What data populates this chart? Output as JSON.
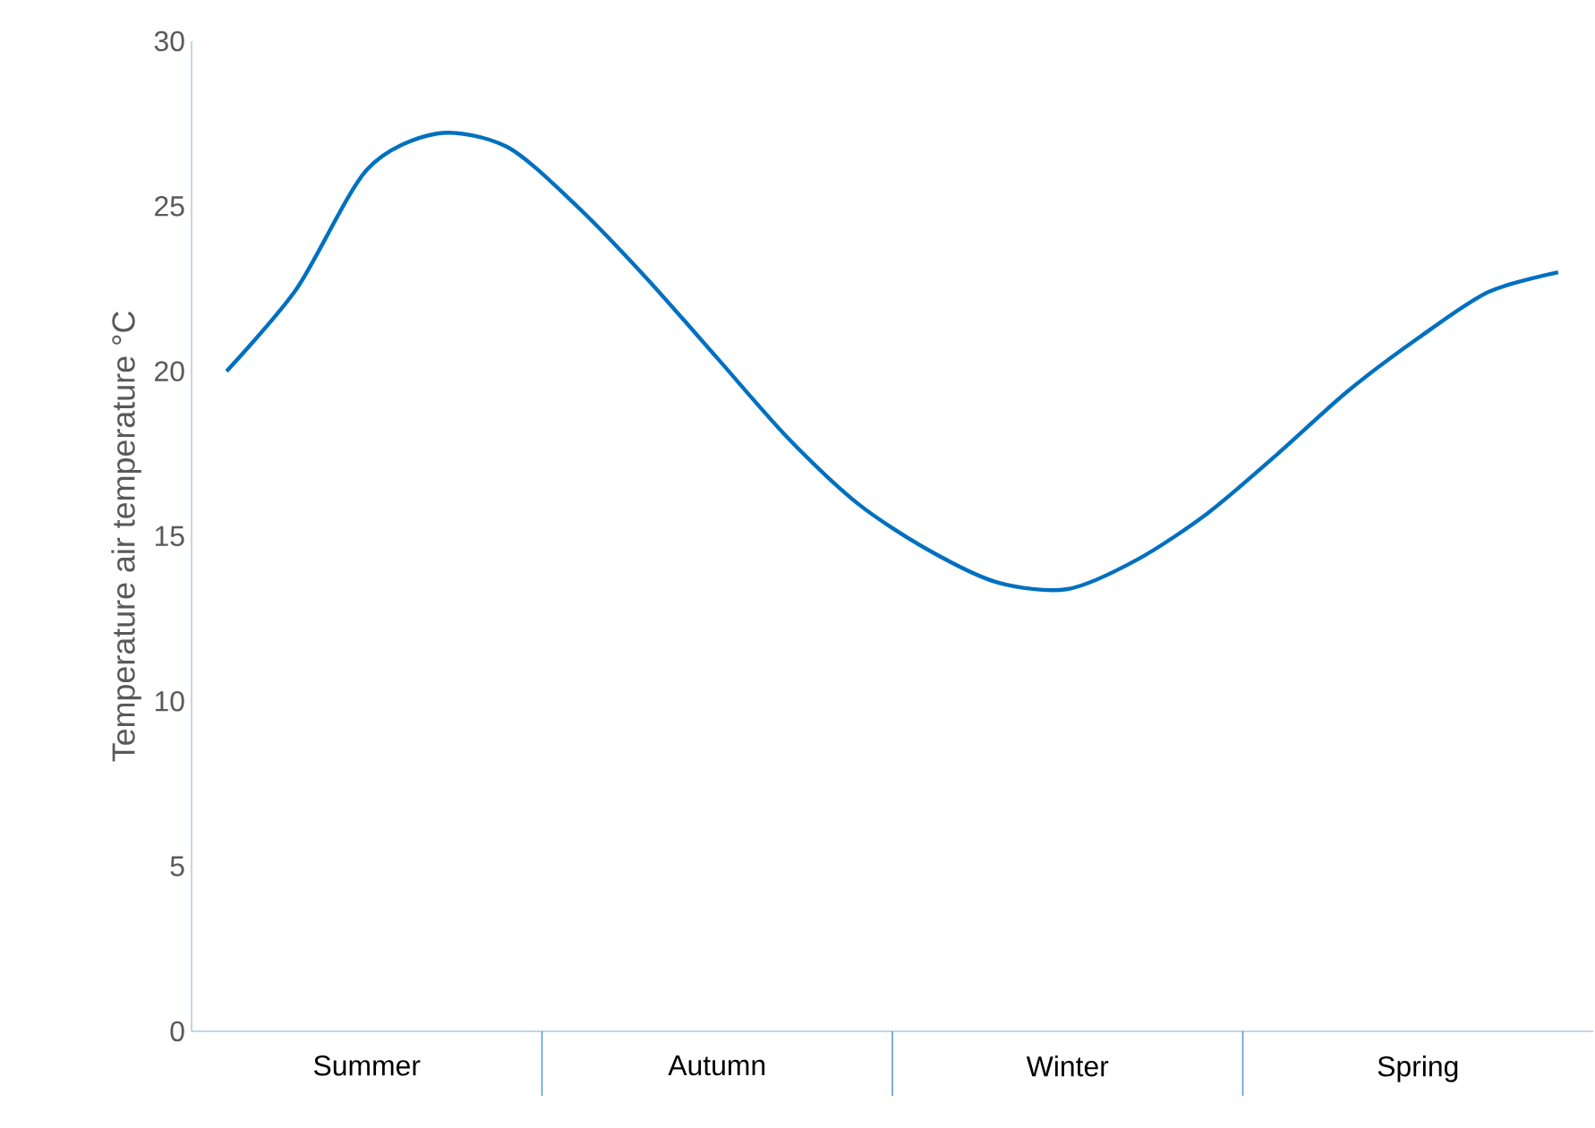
{
  "chart_data": {
    "type": "line",
    "ylabel": "Temperature air temperature °C",
    "ylim": [
      0,
      30
    ],
    "yticks": [
      0,
      5,
      10,
      15,
      20,
      25,
      30
    ],
    "categories": [
      null,
      null,
      "Summer",
      null,
      null,
      null,
      null,
      "Autumn",
      null,
      null,
      null,
      null,
      "Winter",
      null,
      null,
      null,
      null,
      "Spring",
      null,
      null
    ],
    "series": [
      {
        "color": "#0070c0",
        "values": [
          20.0,
          22.5,
          26.1,
          27.2,
          26.8,
          25.0,
          22.8,
          20.4,
          18.0,
          16.0,
          14.6,
          13.6,
          13.4,
          14.3,
          15.7,
          17.5,
          19.4,
          21.0,
          22.4,
          23.0
        ]
      }
    ]
  }
}
